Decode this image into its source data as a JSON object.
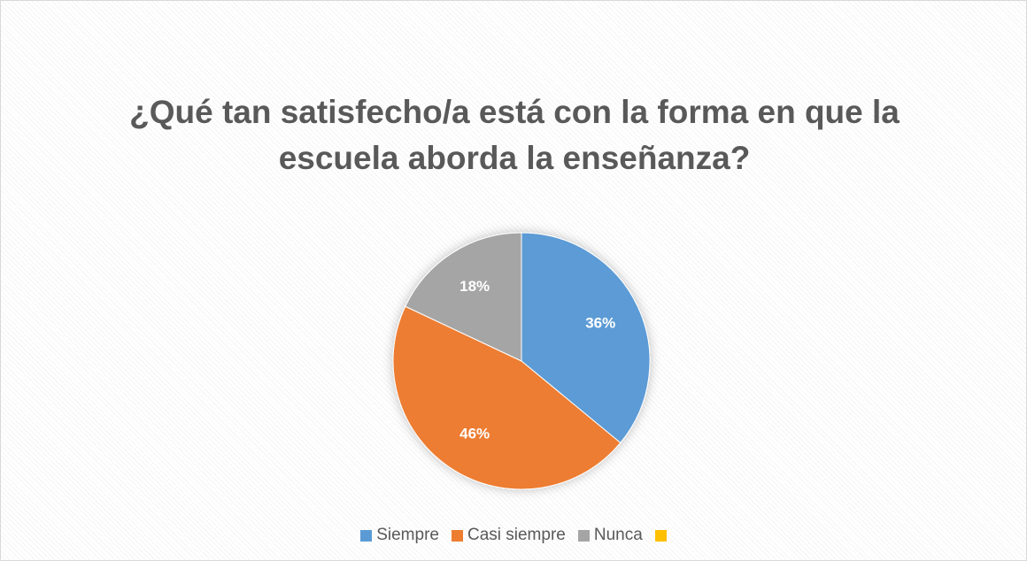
{
  "chart_data": {
    "type": "pie",
    "title": "¿Qué tan satisfecho/a está con la forma en que la escuela aborda la enseñanza?",
    "categories": [
      "Siempre",
      "Casi siempre",
      "Nunca",
      null
    ],
    "values": [
      36,
      46,
      18,
      0
    ],
    "value_labels": [
      "36%",
      "46%",
      "18%",
      null
    ],
    "colors": [
      "#5b9bd5",
      "#ed7d31",
      "#a5a5a5",
      "#ffc000"
    ],
    "legend": "bottom"
  }
}
